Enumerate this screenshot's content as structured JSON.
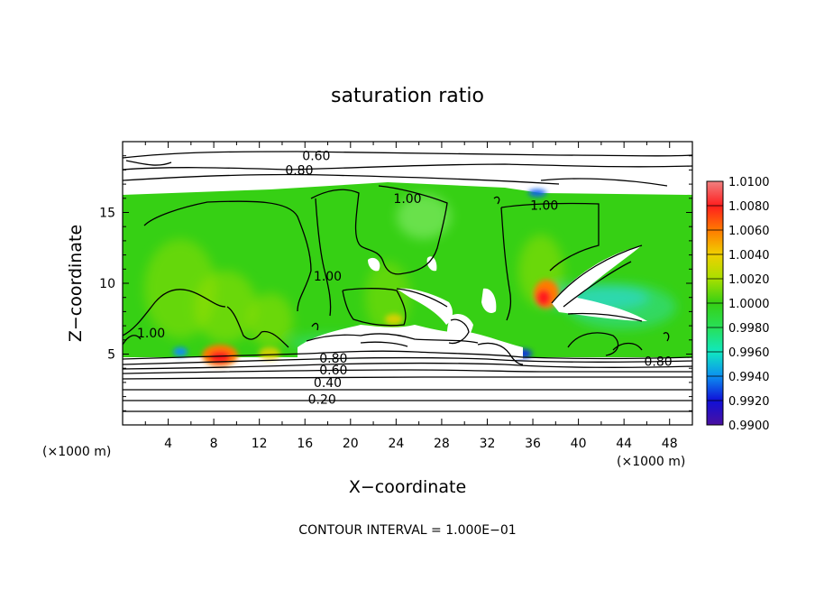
{
  "chart_data": {
    "type": "heatmap",
    "title": "saturation ratio",
    "xlabel": "X−coordinate",
    "ylabel": "Z−coordinate",
    "x_unit": "(×1000 m)",
    "y_unit": "(×1000 m)",
    "xlim": [
      0,
      50
    ],
    "ylim": [
      0,
      20
    ],
    "x_ticks": [
      4,
      8,
      12,
      16,
      20,
      24,
      28,
      32,
      36,
      40,
      44,
      48
    ],
    "y_ticks": [
      5,
      10,
      15
    ],
    "footer": "CONTOUR INTERVAL = 1.000E−01",
    "colorbar": {
      "min": 0.99,
      "max": 1.01,
      "labels": [
        "1.0100",
        "1.0080",
        "1.0060",
        "1.0040",
        "1.0020",
        "1.0000",
        "0.9980",
        "0.9960",
        "0.9940",
        "0.9920",
        "0.9900"
      ],
      "colors": [
        "#f08080",
        "#ff1e1e",
        "#ff7a00",
        "#f0d000",
        "#a8e000",
        "#36d014",
        "#28e058",
        "#10e8c0",
        "#0c90f0",
        "#1010d8",
        "#4a10a0"
      ]
    },
    "contour_labels": [
      {
        "text": "0.60",
        "x": 17.0,
        "z": 19.0
      },
      {
        "text": "0.80",
        "x": 15.5,
        "z": 18.0
      },
      {
        "text": "1.00",
        "x": 25.0,
        "z": 16.0
      },
      {
        "text": "1.00",
        "x": 37.0,
        "z": 15.5
      },
      {
        "text": "1.00",
        "x": 18.0,
        "z": 10.5
      },
      {
        "text": "1.00",
        "x": 2.5,
        "z": 6.5
      },
      {
        "text": "0.80",
        "x": 18.5,
        "z": 4.7
      },
      {
        "text": "0.60",
        "x": 18.5,
        "z": 3.9
      },
      {
        "text": "0.40",
        "x": 18.0,
        "z": 3.0
      },
      {
        "text": "0.20",
        "x": 17.5,
        "z": 1.8
      },
      {
        "text": "0.80",
        "x": 47.0,
        "z": 4.5
      }
    ]
  }
}
